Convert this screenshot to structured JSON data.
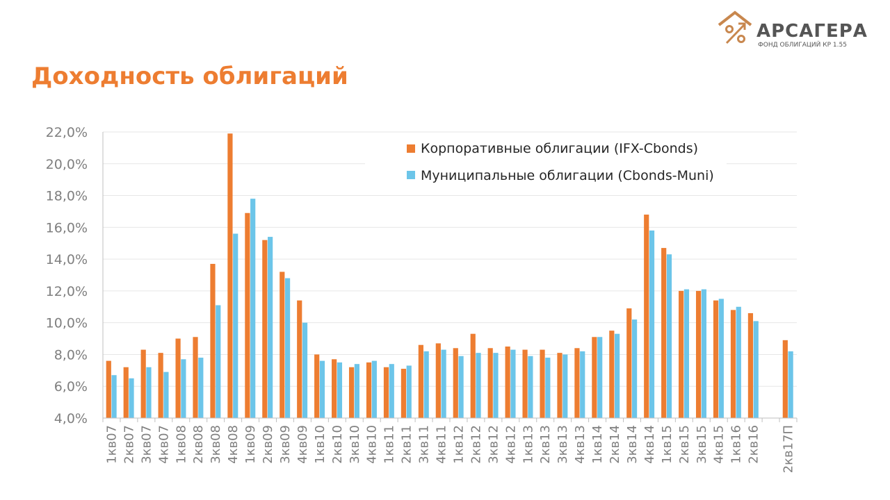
{
  "header": {
    "title": "Доходность облигаций",
    "logo_name": "АРСАГЕРА",
    "logo_subtitle": "ФОНД ОБЛИГАЦИЙ КР 1.55",
    "logo_icon": "house-percent-icon"
  },
  "colors": {
    "accent": "#ED7D31",
    "corporate": "#ED7D31",
    "municipal": "#6CC5E9",
    "axis_text": "#7F7F7F",
    "gridline": "#E6E6E6"
  },
  "chart_data": {
    "type": "bar",
    "title": "",
    "xlabel": "",
    "ylabel": "",
    "ylim": [
      0.04,
      0.22
    ],
    "y_ticks": [
      "4,0%",
      "6,0%",
      "8,0%",
      "10,0%",
      "12,0%",
      "14,0%",
      "16,0%",
      "18,0%",
      "20,0%",
      "22,0%"
    ],
    "grid": true,
    "legend_position": "top-right",
    "categories": [
      "1кв07",
      "2кв07",
      "3кв07",
      "4кв07",
      "1кв08",
      "2кв08",
      "3кв08",
      "4кв08",
      "1кв09",
      "2кв09",
      "3кв09",
      "4кв09",
      "1кв10",
      "2кв10",
      "3кв10",
      "4кв10",
      "1кв11",
      "2кв11",
      "3кв11",
      "4кв11",
      "1кв12",
      "2кв12",
      "3кв12",
      "4кв12",
      "1кв13",
      "2кв13",
      "3кв13",
      "4кв13",
      "1кв14",
      "2кв14",
      "3кв14",
      "4кв14",
      "1кв15",
      "2кв15",
      "3кв15",
      "4кв15",
      "1кв16",
      "2кв16",
      "",
      "2кв17П"
    ],
    "series": [
      {
        "name": "Корпоративные облигации (IFX-Cbonds)",
        "color": "#ED7D31",
        "values": [
          0.076,
          0.072,
          0.083,
          0.081,
          0.09,
          0.091,
          0.137,
          0.219,
          0.169,
          0.152,
          0.132,
          0.114,
          0.08,
          0.077,
          0.072,
          0.075,
          0.072,
          0.071,
          0.086,
          0.087,
          0.084,
          0.093,
          0.084,
          0.085,
          0.083,
          0.083,
          0.081,
          0.084,
          0.091,
          0.095,
          0.109,
          0.168,
          0.147,
          0.12,
          0.12,
          0.114,
          0.108,
          0.106,
          null,
          0.089
        ]
      },
      {
        "name": "Муниципальные облигации (Cbonds-Muni)",
        "color": "#6CC5E9",
        "values": [
          0.067,
          0.065,
          0.072,
          0.069,
          0.077,
          0.078,
          0.111,
          0.156,
          0.178,
          0.154,
          0.128,
          0.1,
          0.076,
          0.075,
          0.074,
          0.076,
          0.074,
          0.073,
          0.082,
          0.083,
          0.079,
          0.081,
          0.081,
          0.083,
          0.079,
          0.078,
          0.08,
          0.082,
          0.091,
          0.093,
          0.102,
          0.158,
          0.143,
          0.121,
          0.121,
          0.115,
          0.11,
          0.101,
          null,
          0.082
        ]
      }
    ]
  }
}
